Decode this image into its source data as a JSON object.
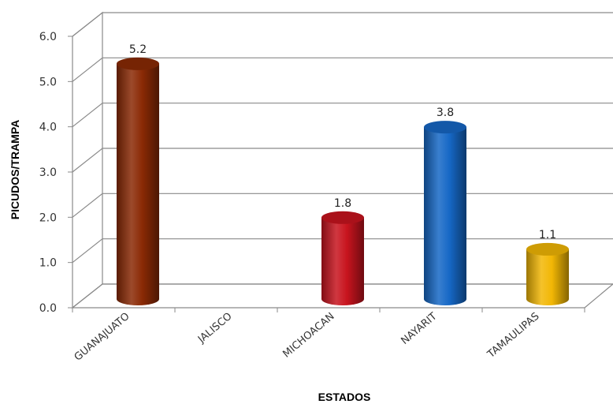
{
  "chart_data": {
    "type": "bar",
    "style": "3d-cylinder",
    "categories": [
      "GUANAJUATO",
      "JALISCO",
      "MICHOACAN",
      "NAYARIT",
      "TAMAULIPAS"
    ],
    "values": [
      5.2,
      0,
      1.8,
      3.8,
      1.1
    ],
    "data_labels": [
      "5.2",
      "",
      "1.8",
      "3.8",
      "1.1"
    ],
    "colors": [
      "#8B2A05",
      null,
      "#C8141E",
      "#1668C6",
      "#F2B705"
    ],
    "xlabel": "ESTADOS",
    "ylabel": "PICUDOS/TRAMPA",
    "ylim": [
      0,
      6
    ],
    "yticks": [
      "0.0",
      "1.0",
      "2.0",
      "3.0",
      "4.0",
      "5.0",
      "6.0"
    ],
    "grid": true,
    "legend": "none"
  }
}
